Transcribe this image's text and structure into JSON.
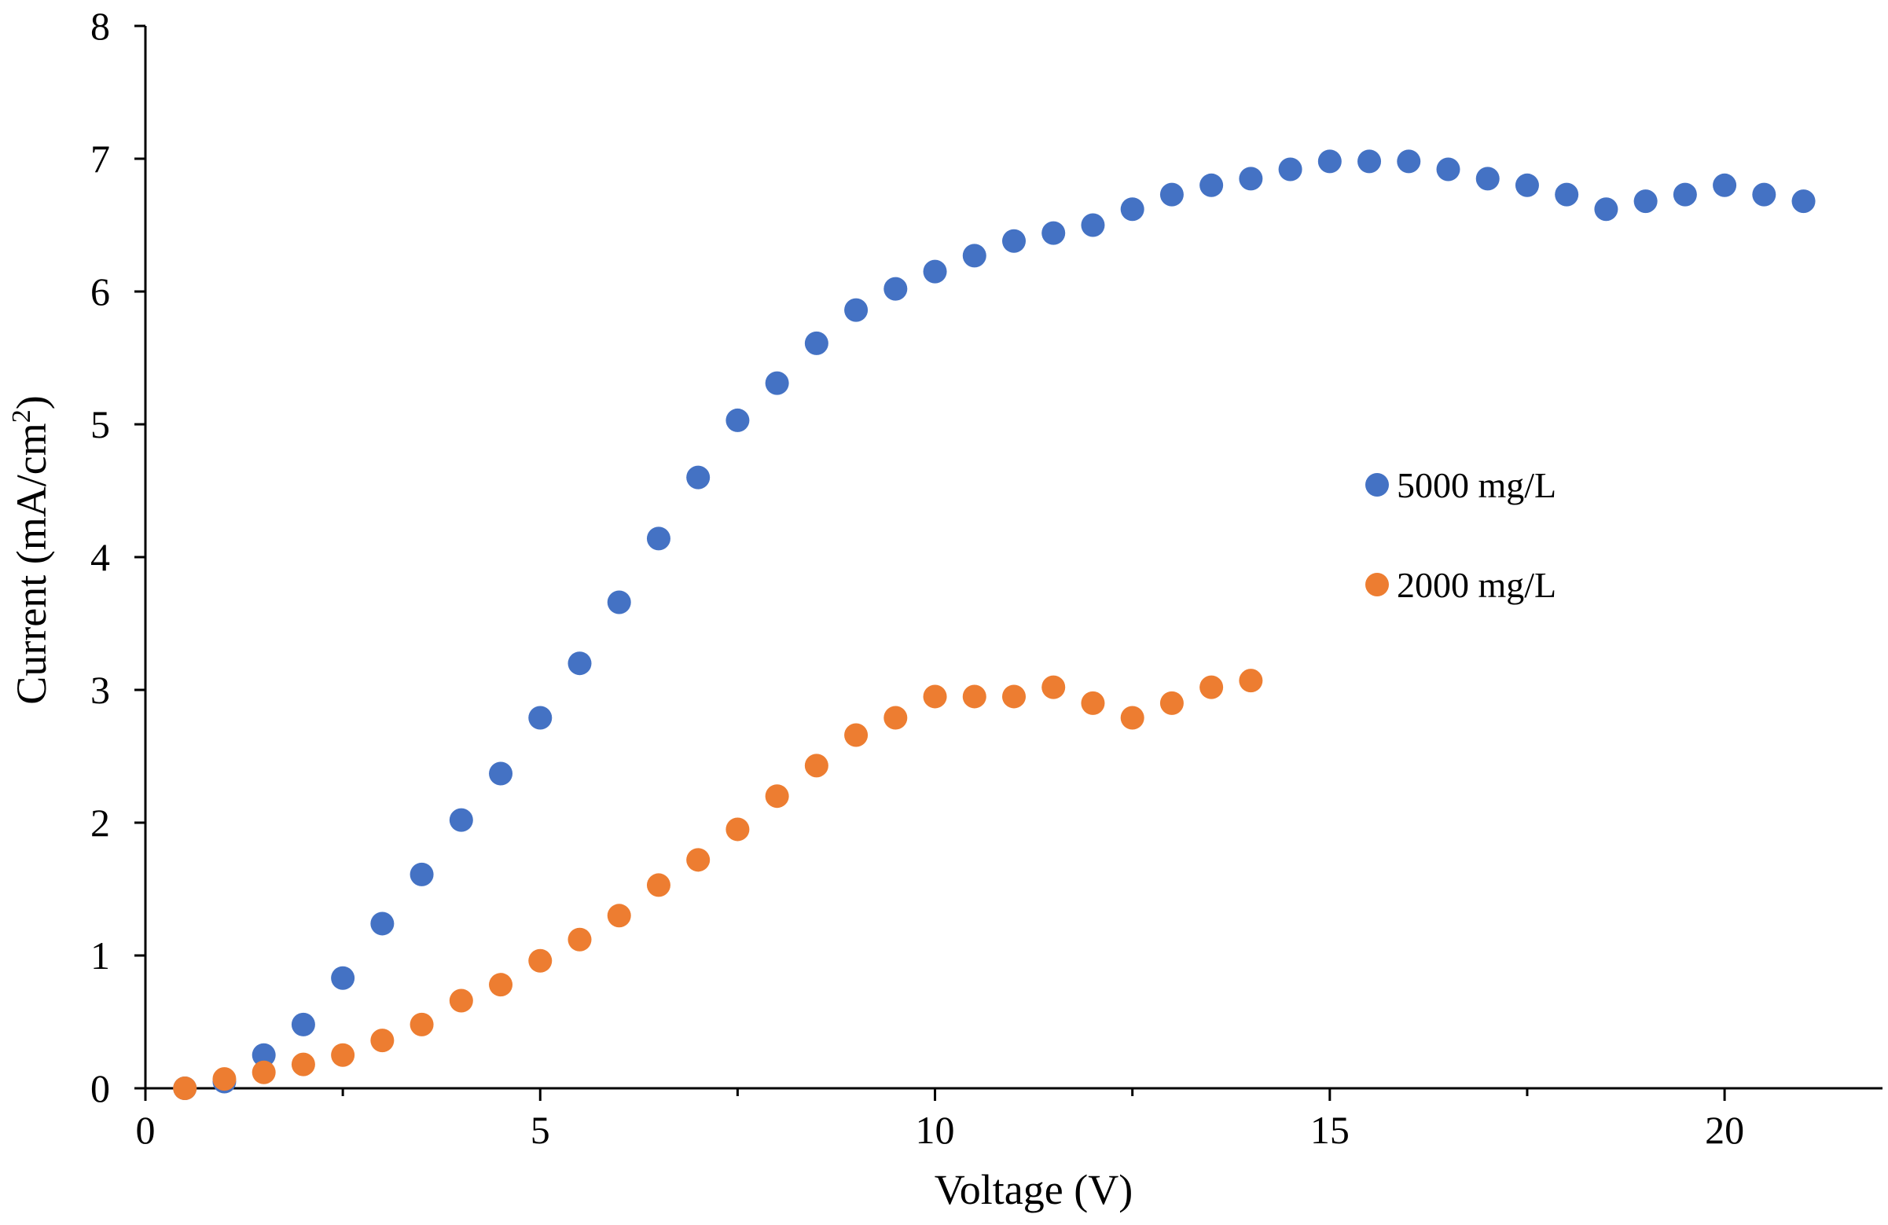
{
  "chart_data": {
    "type": "scatter",
    "title": "",
    "xlabel": "Voltage (V)",
    "ylabel": "Current (mA/cm²)",
    "ylabel_parts": {
      "main": "Current (mA/cm",
      "sup": "2",
      "close": ")"
    },
    "xlim": [
      0,
      22
    ],
    "ylim": [
      0,
      8
    ],
    "xticks": [
      0,
      5,
      10,
      15,
      20
    ],
    "yticks": [
      0,
      1,
      2,
      3,
      4,
      5,
      6,
      7,
      8
    ],
    "grid": false,
    "legend_position": "right-middle",
    "series": [
      {
        "name": "5000 mg/L",
        "color": "#4472C4",
        "x": [
          0.5,
          1,
          1.5,
          2,
          2.5,
          3,
          3.5,
          4,
          4.5,
          5,
          5.5,
          6,
          6.5,
          7,
          7.5,
          8,
          8.5,
          9,
          9.5,
          10,
          10.5,
          11,
          11.5,
          12,
          12.5,
          13,
          13.5,
          14,
          14.5,
          15,
          15.5,
          16,
          16.5,
          17,
          17.5,
          18,
          18.5,
          19,
          19.5,
          20,
          20.5,
          21
        ],
        "y": [
          0,
          0.05,
          0.25,
          0.48,
          0.83,
          1.24,
          1.61,
          2.02,
          2.37,
          2.79,
          3.2,
          3.66,
          4.14,
          4.6,
          5.03,
          5.31,
          5.61,
          5.86,
          6.02,
          6.15,
          6.27,
          6.38,
          6.44,
          6.5,
          6.62,
          6.73,
          6.8,
          6.85,
          6.92,
          6.98,
          6.98,
          6.98,
          6.92,
          6.85,
          6.8,
          6.73,
          6.62,
          6.68,
          6.73,
          6.8,
          6.73,
          6.68
        ]
      },
      {
        "name": "2000 mg/L",
        "color": "#ED7D31",
        "x": [
          0.5,
          1,
          1.5,
          2,
          2.5,
          3,
          3.5,
          4,
          4.5,
          5,
          5.5,
          6,
          6.5,
          7,
          7.5,
          8,
          8.5,
          9,
          9.5,
          10,
          10.5,
          11,
          11.5,
          12,
          12.5,
          13,
          13.5,
          14
        ],
        "y": [
          0,
          0.07,
          0.12,
          0.18,
          0.25,
          0.36,
          0.48,
          0.66,
          0.78,
          0.96,
          1.12,
          1.3,
          1.53,
          1.72,
          1.95,
          2.2,
          2.43,
          2.66,
          2.79,
          2.95,
          2.95,
          2.95,
          3.02,
          2.9,
          2.79,
          2.9,
          3.02,
          3.07
        ]
      }
    ]
  }
}
